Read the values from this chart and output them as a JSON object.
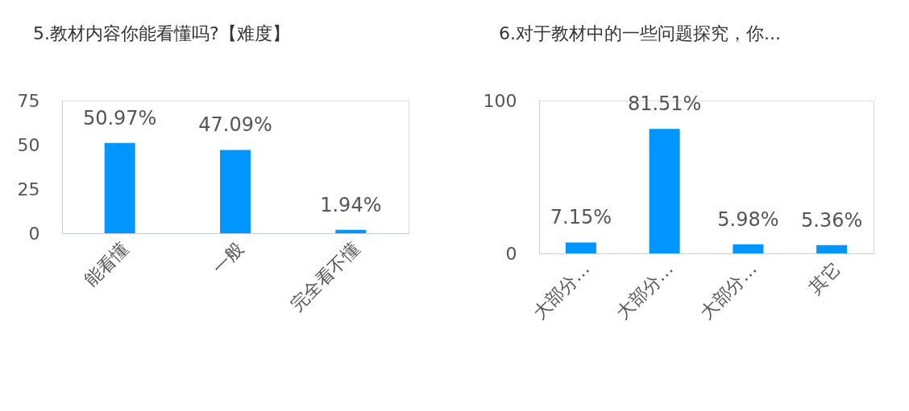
{
  "chart_data": [
    {
      "type": "bar",
      "title": "5.教材内容你能看懂吗?【难度】",
      "categories": [
        "能看懂",
        "一般",
        "完全看不懂"
      ],
      "values": [
        50.97,
        47.09,
        1.94
      ],
      "value_labels": [
        "50.97%",
        "47.09%",
        "1.94%"
      ],
      "color": "#0095ff",
      "ylim": [
        0,
        75
      ],
      "yticks": [
        0,
        25,
        50,
        75
      ],
      "grid": false,
      "legend": false
    },
    {
      "type": "bar",
      "title": "6.对于教材中的一些问题探究，你...",
      "categories": [
        "大部分…",
        "大部分…",
        "大部分…",
        "其它"
      ],
      "values": [
        7.15,
        81.51,
        5.98,
        5.36
      ],
      "value_labels": [
        "7.15%",
        "81.51%",
        "5.98%",
        "5.36%"
      ],
      "color": "#0095ff",
      "ylim": [
        0,
        100
      ],
      "yticks": [
        0,
        100
      ],
      "grid": false,
      "legend": false
    }
  ]
}
